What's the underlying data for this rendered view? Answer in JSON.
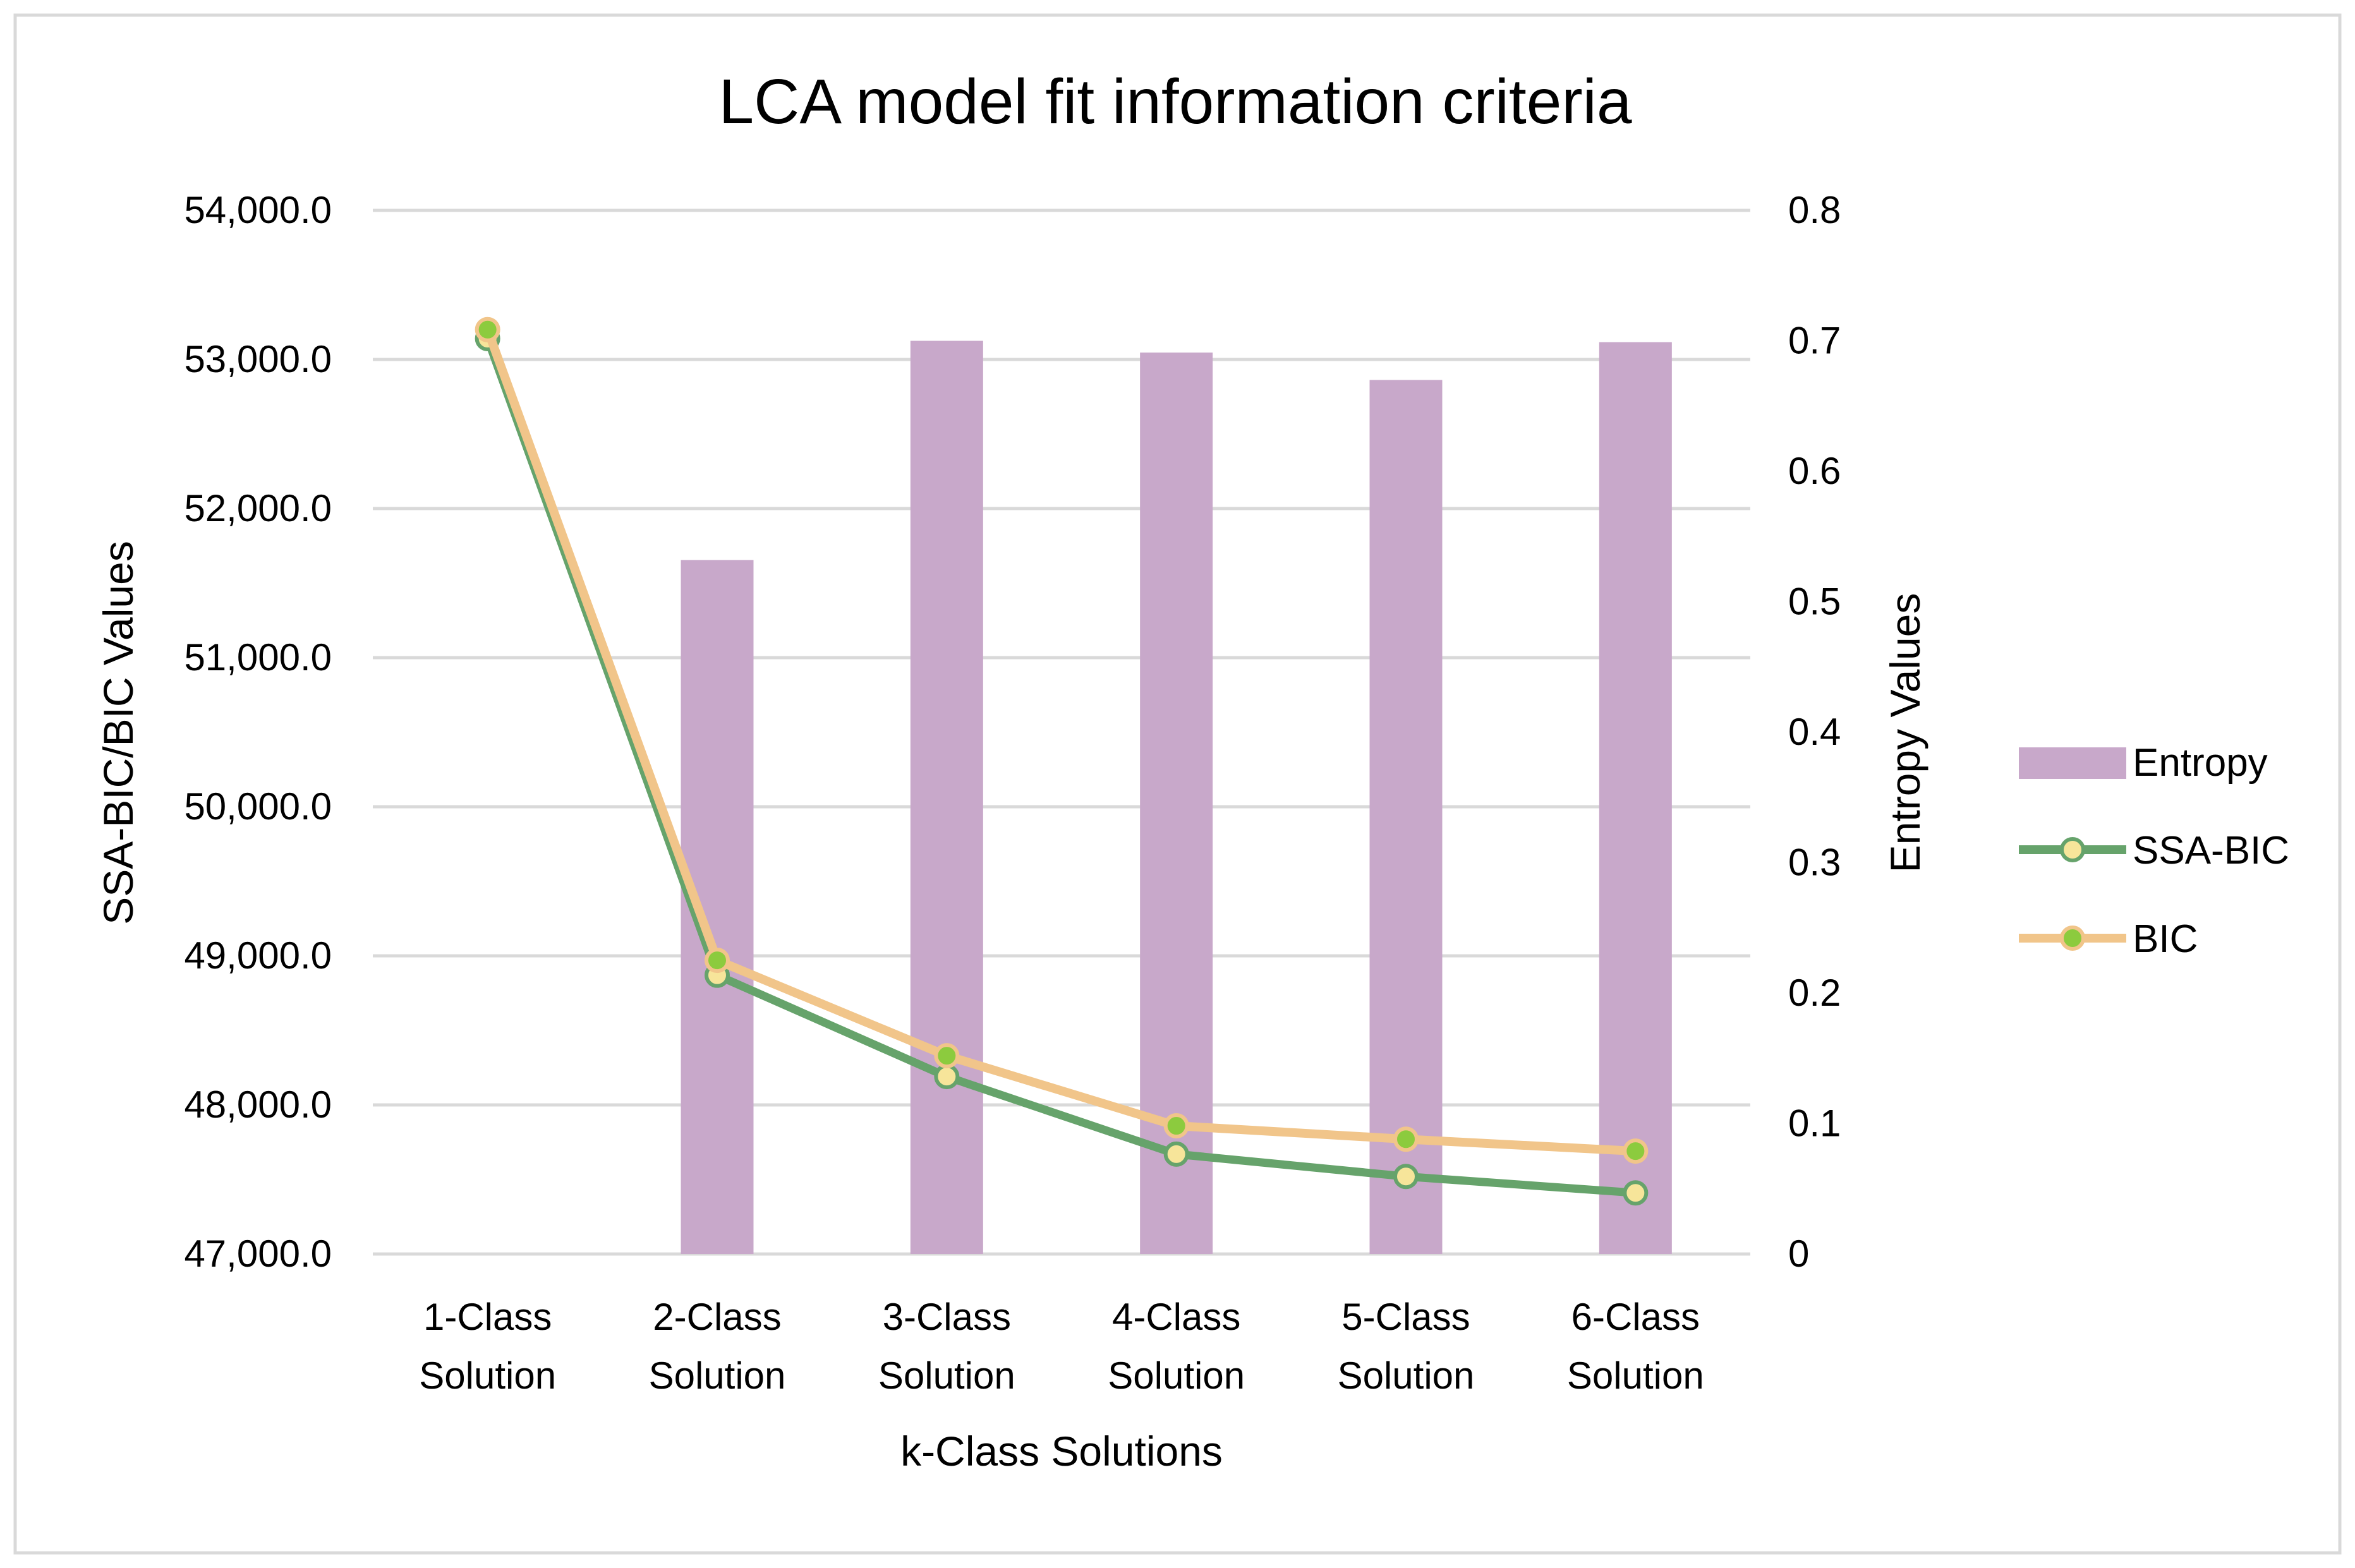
{
  "colors": {
    "entropy_bar": "#C8A8CA",
    "ssa_bic_line": "#66A36B",
    "ssa_bic_marker_fill": "#F7E59A",
    "bic_line": "#F1C58A",
    "bic_marker_fill": "#8CCB3E",
    "gridline": "#D9D9D9",
    "frame_border": "#D9D9D9"
  },
  "chart_data": {
    "type": "bar",
    "title": "LCA model fit information criteria",
    "xlabel": "k-Class Solutions",
    "ylabel": "SSA-BIC/BIC Values",
    "y2label": "Entropy Values",
    "categories": [
      [
        "1-Class",
        "Solution"
      ],
      [
        "2-Class",
        "Solution"
      ],
      [
        "3-Class",
        "Solution"
      ],
      [
        "4-Class",
        "Solution"
      ],
      [
        "5-Class",
        "Solution"
      ],
      [
        "6-Class",
        "Solution"
      ]
    ],
    "ylim": [
      47000,
      54000
    ],
    "y_ticks": [
      47000,
      48000,
      49000,
      50000,
      51000,
      52000,
      53000,
      54000
    ],
    "y_tick_labels": [
      "47,000.0",
      "48,000.0",
      "49,000.0",
      "50,000.0",
      "51,000.0",
      "52,000.0",
      "53,000.0",
      "54,000.0"
    ],
    "y2lim": [
      0,
      0.8
    ],
    "y2_ticks": [
      0,
      0.1,
      0.2,
      0.3,
      0.4,
      0.5,
      0.6,
      0.7,
      0.8
    ],
    "y2_tick_labels": [
      "0",
      "0.1",
      "0.2",
      "0.3",
      "0.4",
      "0.5",
      "0.6",
      "0.7",
      "0.8"
    ],
    "grid": true,
    "legend_position": "right",
    "series": [
      {
        "name": "Entropy",
        "type": "bar",
        "axis": "y2",
        "values": [
          null,
          0.532,
          0.7,
          0.691,
          0.67,
          0.699
        ]
      },
      {
        "name": "SSA-BIC",
        "type": "line",
        "axis": "y",
        "values": [
          53140,
          48870,
          48190,
          47670,
          47520,
          47410
        ]
      },
      {
        "name": "BIC",
        "type": "line",
        "axis": "y",
        "values": [
          53200,
          48970,
          48330,
          47860,
          47770,
          47690
        ]
      }
    ]
  }
}
